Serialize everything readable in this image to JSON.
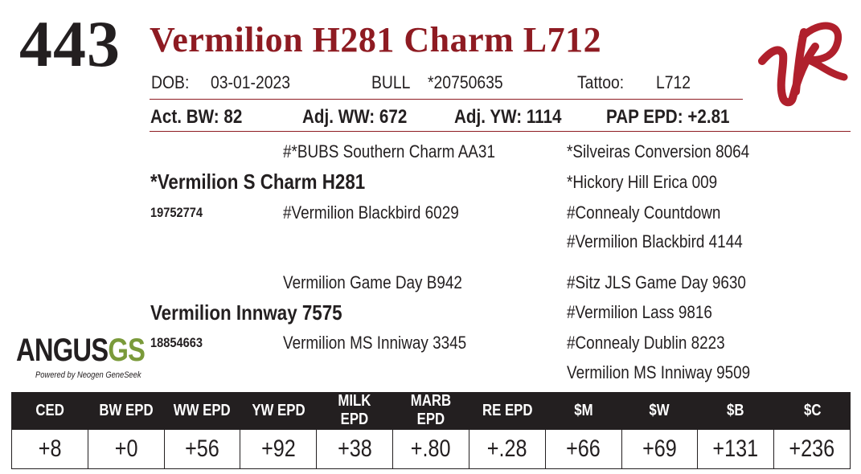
{
  "lot_number": "443",
  "animal_name": "Vermilion H281 Charm L712",
  "info": {
    "dob_label": "DOB:",
    "dob": "03-01-2023",
    "sex": "BULL",
    "reg_no": "*20750635",
    "tattoo_label": "Tattoo:",
    "tattoo": "L712"
  },
  "performance": {
    "act_bw": "Act. BW: 82",
    "adj_ww": "Adj. WW: 672",
    "adj_yw": "Adj. YW: 1114",
    "pap_epd": "PAP EPD: +2.81"
  },
  "pedigree": {
    "sire": {
      "name": "*Vermilion S Charm H281",
      "reg_no": "19752774",
      "sire": "#*BUBS Southern Charm AA31",
      "dam": "#Vermilion Blackbird 6029",
      "sire_sire": "*Silveiras Conversion 8064",
      "sire_dam": "*Hickory Hill Erica 009",
      "dam_sire": "#Connealy Countdown",
      "dam_dam": "#Vermilion Blackbird 4144"
    },
    "dam": {
      "name": "Vermilion Innway 7575",
      "reg_no": "18854663",
      "sire": "Vermilion Game Day B942",
      "dam": "Vermilion MS Inniway 3345",
      "sire_sire": "#Sitz JLS Game Day 9630",
      "sire_dam": "#Vermilion Lass 9816",
      "dam_sire": "#Connealy Dublin 8223",
      "dam_dam": "Vermilion MS Inniway 9509"
    }
  },
  "logos": {
    "ranch_logo_text": "VR",
    "ranch_logo_color": "#b0202c",
    "angus_word": "ANGUS",
    "angus_gs": "GS",
    "angus_tagline": "Powered by Neogen GeneSeek"
  },
  "epd_table": {
    "headers": [
      "CED",
      "BW EPD",
      "WW EPD",
      "YW EPD",
      "MILK EPD",
      "MARB EPD",
      "RE EPD",
      "$M",
      "$W",
      "$B",
      "$C"
    ],
    "values": [
      "+8",
      "+0",
      "+56",
      "+92",
      "+38",
      "+.80",
      "+.28",
      "+66",
      "+69",
      "+131",
      "+236"
    ]
  }
}
